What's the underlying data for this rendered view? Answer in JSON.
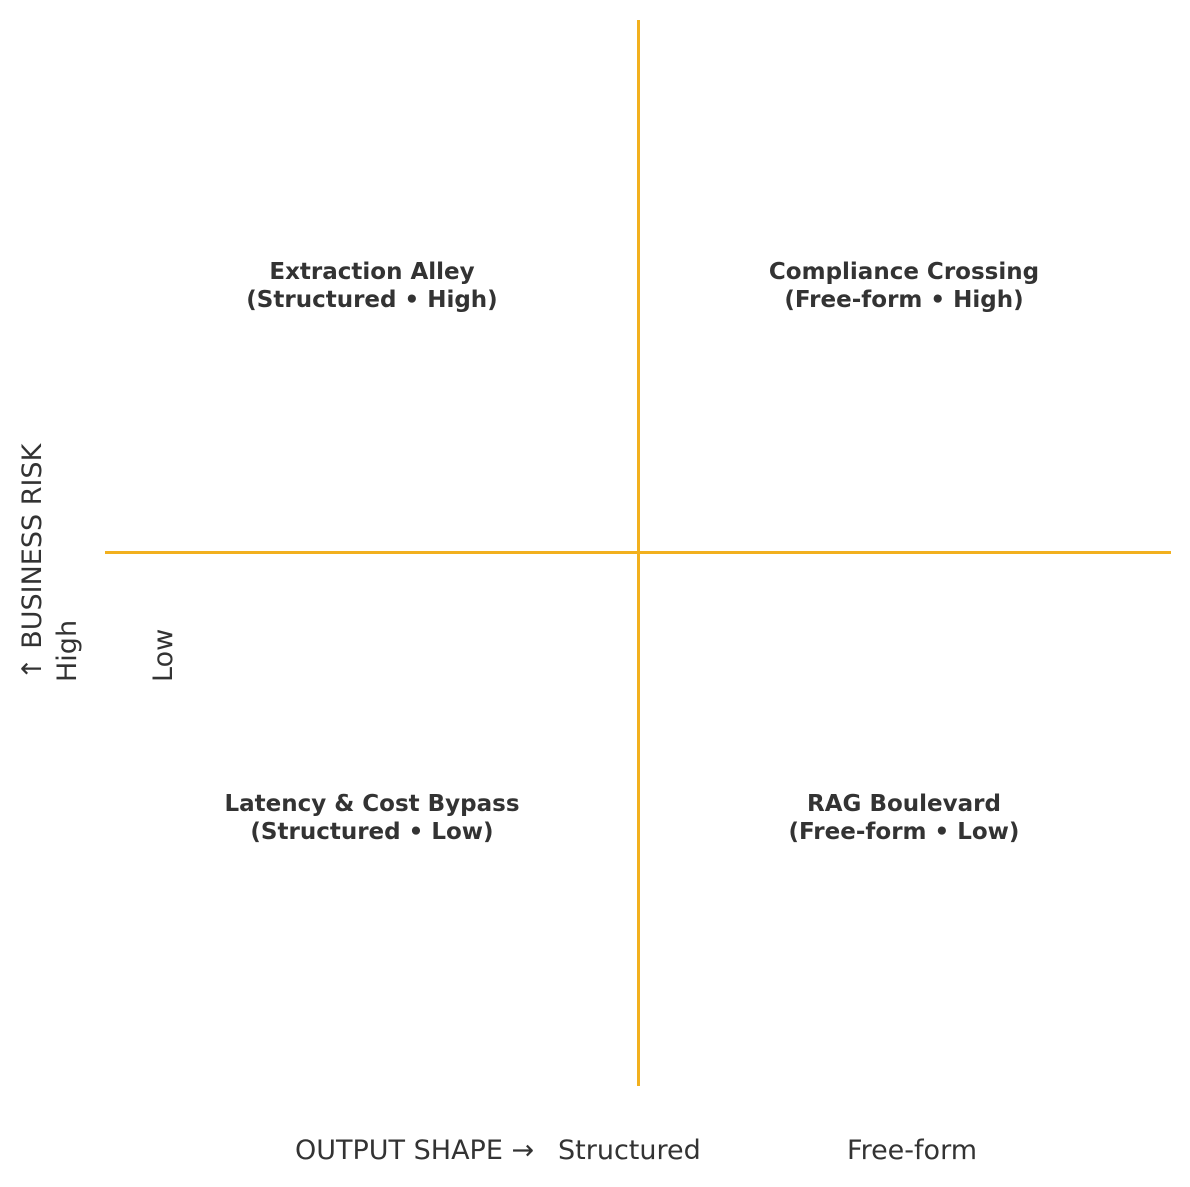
{
  "quadrants": {
    "top_left": {
      "title": "Extraction Alley",
      "subtitle": "(Structured • High)"
    },
    "top_right": {
      "title": "Compliance Crossing",
      "subtitle": "(Free-form • High)"
    },
    "bottom_left": {
      "title": "Latency & Cost Bypass",
      "subtitle": "(Structured • Low)"
    },
    "bottom_right": {
      "title": "RAG Boulevard",
      "subtitle": "(Free-form • Low)"
    }
  },
  "x_axis": {
    "title": "OUTPUT SHAPE →",
    "ticks": [
      "Structured",
      "Free-form"
    ]
  },
  "y_axis": {
    "title": "↑  BUSINESS RISK",
    "ticks": [
      "High",
      "Low"
    ]
  },
  "colors": {
    "axis": "#F2B01E",
    "text": "#333333",
    "background": "#ffffff"
  }
}
